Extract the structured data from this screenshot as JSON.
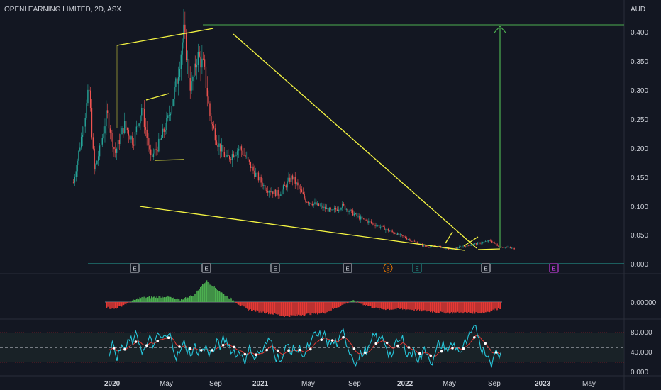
{
  "header": {
    "symbol_line": "OPENLEARNING LIMITED, 2D, ASX",
    "currency": "AUD"
  },
  "price_axis": {
    "ticks": [
      "0.400",
      "0.350",
      "0.300",
      "0.250",
      "0.200",
      "0.150",
      "0.100",
      "0.050",
      "0.000"
    ]
  },
  "osc_axis": {
    "ticks": [
      "0.00000"
    ]
  },
  "rsi_axis": {
    "ticks": [
      "80.000",
      "40.000",
      "0.000"
    ]
  },
  "time_axis": [
    {
      "label": "2020",
      "year": true
    },
    {
      "label": "May",
      "year": false
    },
    {
      "label": "Sep",
      "year": false
    },
    {
      "label": "2021",
      "year": true
    },
    {
      "label": "May",
      "year": false
    },
    {
      "label": "Sep",
      "year": false
    },
    {
      "label": "2022",
      "year": true
    },
    {
      "label": "May",
      "year": false
    },
    {
      "label": "Sep",
      "year": false
    },
    {
      "label": "2023",
      "year": true
    },
    {
      "label": "May",
      "year": false
    }
  ],
  "event_markers": [
    {
      "label": "E",
      "color": "#d1d4dc"
    },
    {
      "label": "E",
      "color": "#d1d4dc"
    },
    {
      "label": "E",
      "color": "#d1d4dc"
    },
    {
      "label": "E",
      "color": "#d1d4dc"
    },
    {
      "label": "S",
      "color": "#f57c00"
    },
    {
      "label": "E",
      "color": "#26a69a"
    },
    {
      "label": "E",
      "color": "#d1d4dc"
    },
    {
      "label": "E",
      "color": "#e040fb"
    }
  ],
  "colors": {
    "up": "#26a69a",
    "down": "#ef5350",
    "pattern": "#f5f542",
    "target": "#4caf50",
    "osc_up": "#4caf50",
    "osc_down": "#e53935",
    "rsi": "#26c6da",
    "rsi_ma": "#e53935"
  },
  "chart_data": [
    {
      "type": "candlestick",
      "title": "OPENLEARNING LIMITED, 2D, ASX",
      "ylabel": "AUD",
      "ylim": [
        0,
        0.42
      ],
      "x_range": [
        "2019-12-01",
        "2023-06-01"
      ],
      "series": [
        {
          "name": "price",
          "x": [
            "2019-12-15",
            "2020-01-05",
            "2020-01-20",
            "2020-02-01",
            "2020-02-15",
            "2020-03-01",
            "2020-03-20",
            "2020-04-10",
            "2020-05-01",
            "2020-05-20",
            "2020-06-10",
            "2020-07-01",
            "2020-07-20",
            "2020-08-10",
            "2020-08-25",
            "2020-09-10",
            "2020-09-25",
            "2020-10-10",
            "2020-10-25",
            "2020-11-10",
            "2020-12-01",
            "2021-01-01",
            "2021-02-01",
            "2021-03-01",
            "2021-04-01",
            "2021-05-01",
            "2021-06-01",
            "2021-07-01",
            "2021-08-01",
            "2021-08-25",
            "2021-10-01",
            "2021-11-01",
            "2021-12-01",
            "2022-01-01",
            "2022-02-01",
            "2022-03-01",
            "2022-04-01",
            "2022-05-01",
            "2022-06-01",
            "2022-07-01",
            "2022-08-01",
            "2022-08-20",
            "2022-09-10",
            "2022-09-25"
          ],
          "values": [
            0.14,
            0.23,
            0.3,
            0.16,
            0.2,
            0.26,
            0.19,
            0.24,
            0.21,
            0.27,
            0.18,
            0.21,
            0.25,
            0.32,
            0.4,
            0.3,
            0.36,
            0.34,
            0.25,
            0.21,
            0.18,
            0.2,
            0.16,
            0.13,
            0.12,
            0.15,
            0.11,
            0.1,
            0.09,
            0.1,
            0.08,
            0.07,
            0.06,
            0.05,
            0.04,
            0.03,
            0.03,
            0.025,
            0.03,
            0.035,
            0.04,
            0.03,
            0.028,
            0.026
          ]
        }
      ],
      "annotations": [
        "broadening wedge (yellow)",
        "flag (yellow)",
        "target arrow to 0.410 (green)"
      ]
    },
    {
      "type": "area",
      "ylabel": "oscillator",
      "series": [
        {
          "name": "momentum",
          "x": [
            "2020-01",
            "2020-03",
            "2020-05",
            "2020-07",
            "2020-08",
            "2020-09",
            "2020-10",
            "2020-11",
            "2021-01",
            "2021-04",
            "2021-07",
            "2021-09",
            "2021-11",
            "2022-01",
            "2022-04",
            "2022-07",
            "2022-09"
          ],
          "values": [
            0,
            -1,
            0.6,
            0.8,
            0.3,
            1,
            3,
            1.5,
            -1,
            -2,
            -1.5,
            0.2,
            -1,
            -1,
            -1.5,
            -1.5,
            -0.5
          ]
        }
      ]
    },
    {
      "type": "line",
      "ylabel": "RSI",
      "ylim": [
        0,
        100
      ],
      "series": [
        {
          "name": "rsi",
          "x": [
            "2020",
            "2021",
            "2022",
            "2022-09"
          ],
          "values": [
            60,
            50,
            45,
            55
          ]
        },
        {
          "name": "rsi_ma",
          "x": [
            "2020",
            "2021",
            "2022",
            "2022-09"
          ],
          "values": [
            52,
            48,
            45,
            48
          ]
        }
      ],
      "levels": [
        80,
        50,
        20
      ]
    }
  ]
}
